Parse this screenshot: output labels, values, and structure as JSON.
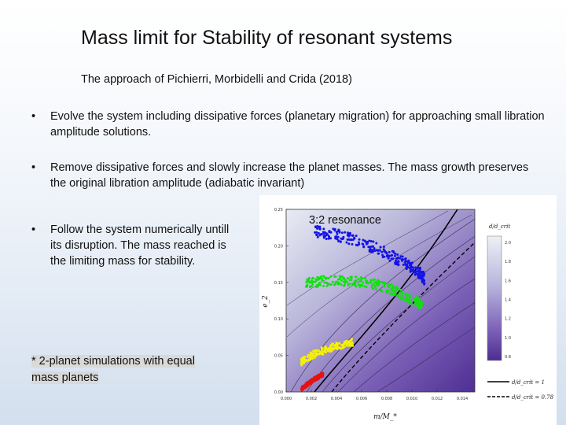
{
  "slide": {
    "title": "Mass limit for Stability of resonant systems",
    "subtitle": "The approach of Pichierri, Morbidelli and Crida (2018)",
    "bullets": [
      "Evolve the system including dissipative forces  (planetary migration) for approaching small libration amplitude solutions.",
      "Remove dissipative forces and slowly increase the planet masses. The mass growth preserves the original libration amplitude (adiabatic invariant)",
      "Follow the system numerically untill its disruption. The mass reached is the limiting mass for stability."
    ],
    "bullet_symbol": "•",
    "note_line1": "* 2-planet simulations with equal",
    "note_line2": "mass planets"
  },
  "figure": {
    "label": "3:2 resonance",
    "colorbar_title": "d/d_crit",
    "legend_solid": "d/d_crit = 1",
    "legend_dashed": "d/d_crit = 0.78",
    "xlabel": "m/M_*",
    "ylabel": "e_2"
  },
  "chart_data": {
    "type": "scatter",
    "xlabel": "m/M_*",
    "ylabel": "e_2",
    "xlim": [
      0,
      0.015
    ],
    "ylim": [
      0,
      0.25
    ],
    "xticks": [
      "0.000",
      "0.002",
      "0.004",
      "0.006",
      "0.008",
      "0.010",
      "0.012",
      "0.014"
    ],
    "yticks": [
      "0.00",
      "0.05",
      "0.10",
      "0.15",
      "0.20",
      "0.25"
    ],
    "colorbar_ticks": [
      "2.0",
      "1.8",
      "1.6",
      "1.4",
      "1.2",
      "1.0",
      "0.8"
    ],
    "colors": {
      "blue": "#1414e6",
      "green": "#12e012",
      "yellow": "#f5f000",
      "red": "#e61212",
      "background_dark": "#55339a",
      "background_light": "#e9ecf3"
    },
    "series": [
      {
        "color": "blue",
        "x": [
          0.0022,
          0.004,
          0.006,
          0.008,
          0.0095,
          0.0105,
          0.011
        ],
        "y": [
          0.22,
          0.215,
          0.205,
          0.19,
          0.175,
          0.165,
          0.155
        ],
        "spread": 0.008
      },
      {
        "color": "green",
        "x": [
          0.0015,
          0.003,
          0.005,
          0.007,
          0.0085,
          0.0098,
          0.0108
        ],
        "y": [
          0.149,
          0.152,
          0.152,
          0.148,
          0.14,
          0.128,
          0.12
        ],
        "spread": 0.007
      },
      {
        "color": "yellow",
        "x": [
          0.0012,
          0.002,
          0.003,
          0.004,
          0.0053
        ],
        "y": [
          0.041,
          0.05,
          0.057,
          0.063,
          0.068
        ],
        "spread": 0.005
      },
      {
        "color": "red",
        "x": [
          0.0012,
          0.0018,
          0.0025,
          0.003
        ],
        "y": [
          0.004,
          0.012,
          0.02,
          0.025
        ],
        "spread": 0.003
      }
    ]
  }
}
